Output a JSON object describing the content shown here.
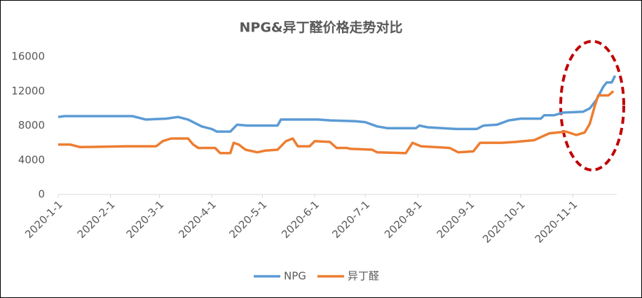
{
  "chart_data": {
    "type": "line",
    "title": "NPG&异丁醛价格走势对比",
    "xlim": [
      "2020-1-1",
      "2020-11-27"
    ],
    "xticks": [
      "2020-1-1",
      "2020-2-1",
      "2020-3-1",
      "2020-4-1",
      "2020-5-1",
      "2020-6-1",
      "2020-7-1",
      "2020-8-1",
      "2020-9-1",
      "2020-10-1",
      "2020-11-1"
    ],
    "ylim": [
      0,
      16000
    ],
    "yticks": [
      0,
      4000,
      8000,
      12000,
      16000
    ],
    "grid": false,
    "legend": "bottom",
    "series": [
      {
        "name": "NPG",
        "color": "#5b9bd5",
        "x": [
          "2020-1-1",
          "2020-1-5",
          "2020-2-14",
          "2020-2-22",
          "2020-3-5",
          "2020-3-12",
          "2020-3-18",
          "2020-3-26",
          "2020-4-1",
          "2020-4-4",
          "2020-4-12",
          "2020-4-16",
          "2020-4-22",
          "2020-5-10",
          "2020-5-12",
          "2020-6-3",
          "2020-6-10",
          "2020-6-25",
          "2020-7-1",
          "2020-7-8",
          "2020-7-14",
          "2020-7-31",
          "2020-8-2",
          "2020-8-7",
          "2020-8-24",
          "2020-9-5",
          "2020-9-9",
          "2020-9-17",
          "2020-9-24",
          "2020-10-1",
          "2020-10-13",
          "2020-10-15",
          "2020-10-21",
          "2020-10-26",
          "2020-11-7",
          "2020-11-11",
          "2020-11-15",
          "2020-11-19",
          "2020-11-21",
          "2020-11-24",
          "2020-11-26"
        ],
        "values": [
          9000,
          9100,
          9100,
          8700,
          8800,
          9000,
          8700,
          7900,
          7600,
          7300,
          7300,
          8100,
          8000,
          8000,
          8700,
          8700,
          8600,
          8500,
          8400,
          7900,
          7700,
          7700,
          8000,
          7800,
          7600,
          7600,
          8000,
          8100,
          8600,
          8800,
          8800,
          9200,
          9200,
          9500,
          9600,
          10000,
          11000,
          12500,
          13000,
          13000,
          13800
        ]
      },
      {
        "name": "异丁醛",
        "color": "#ed7d31",
        "x": [
          "2020-1-1",
          "2020-1-8",
          "2020-1-14",
          "2020-2-10",
          "2020-2-28",
          "2020-3-3",
          "2020-3-8",
          "2020-3-18",
          "2020-3-21",
          "2020-3-24",
          "2020-4-3",
          "2020-4-6",
          "2020-4-12",
          "2020-4-14",
          "2020-4-17",
          "2020-4-21",
          "2020-4-28",
          "2020-5-3",
          "2020-5-10",
          "2020-5-15",
          "2020-5-19",
          "2020-5-22",
          "2020-5-29",
          "2020-6-1",
          "2020-6-10",
          "2020-6-14",
          "2020-6-20",
          "2020-6-22",
          "2020-7-5",
          "2020-7-8",
          "2020-7-25",
          "2020-7-29",
          "2020-8-3",
          "2020-8-20",
          "2020-8-25",
          "2020-9-3",
          "2020-9-7",
          "2020-9-20",
          "2020-9-28",
          "2020-10-9",
          "2020-10-18",
          "2020-10-28",
          "2020-11-3",
          "2020-11-8",
          "2020-11-11",
          "2020-11-14",
          "2020-11-16",
          "2020-11-22",
          "2020-11-25"
        ],
        "values": [
          5800,
          5800,
          5500,
          5600,
          5600,
          6200,
          6500,
          6500,
          5800,
          5400,
          5400,
          4800,
          4800,
          6000,
          5800,
          5200,
          4900,
          5100,
          5200,
          6200,
          6500,
          5600,
          5600,
          6200,
          6100,
          5400,
          5400,
          5300,
          5200,
          4900,
          4800,
          6000,
          5600,
          5400,
          4900,
          5000,
          6000,
          6000,
          6100,
          6300,
          7100,
          7300,
          6900,
          7200,
          8200,
          10300,
          11500,
          11500,
          12000
        ]
      }
    ]
  }
}
